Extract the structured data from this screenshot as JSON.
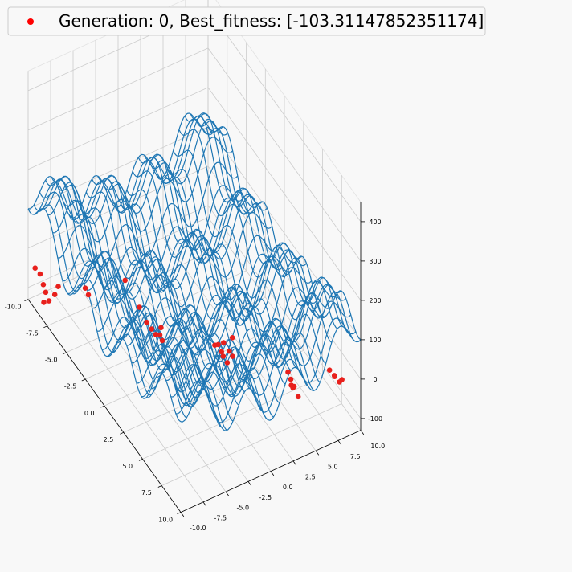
{
  "legend": {
    "label": "Generation: 0, Best_fitness: [-103.31147852351174]",
    "marker_color": "#ff0000"
  },
  "chart_data": {
    "type": "surface-wireframe-3d",
    "title": "",
    "xlabel": "",
    "ylabel": "",
    "zlabel": "",
    "xlim": [
      -10,
      10
    ],
    "ylim": [
      -10,
      10
    ],
    "zlim": [
      -130,
      450
    ],
    "x_ticks": [
      "-10.0",
      "-7.5",
      "-5.0",
      "-2.5",
      "0.0",
      "2.5",
      "5.0",
      "7.5",
      "10.0"
    ],
    "y_ticks": [
      "-10.0",
      "-7.5",
      "-5.0",
      "-2.5",
      "0.0",
      "2.5",
      "5.0",
      "7.5",
      "10.0"
    ],
    "z_ticks": [
      "-100",
      "0",
      "100",
      "200",
      "300",
      "400"
    ],
    "surface_color": "#1f77b4",
    "point_color": "#e8201c",
    "grid": true,
    "legend_position": "upper-left",
    "series": [
      {
        "name": "Generation: 0, Best_fitness: [-103.31147852351174]",
        "type": "scatter3d",
        "points": [
          [
            -8.9,
            -9.6,
            -40
          ],
          [
            -9.2,
            -9.9,
            -30
          ],
          [
            -8.6,
            -9.5,
            -60
          ],
          [
            -8.4,
            -9.4,
            -75
          ],
          [
            -8.1,
            -9.3,
            -90
          ],
          [
            -8.3,
            -9.7,
            -95
          ],
          [
            -7.8,
            -8.9,
            -70
          ],
          [
            -7.7,
            -8.6,
            -50
          ],
          [
            -7.0,
            -6.2,
            -60
          ],
          [
            -6.7,
            -6.1,
            -70
          ],
          [
            -3.2,
            -3.4,
            -35
          ],
          [
            -2.6,
            -3.1,
            -60
          ],
          [
            -2.3,
            -2.8,
            -72
          ],
          [
            -2.0,
            -2.6,
            -80
          ],
          [
            -1.7,
            -2.4,
            -75
          ],
          [
            -1.9,
            -2.1,
            -65
          ],
          [
            -1.5,
            -2.3,
            -85
          ],
          [
            -3.9,
            -4.4,
            25
          ],
          [
            1.7,
            1.2,
            -45
          ],
          [
            1.9,
            1.4,
            -60
          ],
          [
            2.0,
            1.5,
            -70
          ],
          [
            2.3,
            1.7,
            -80
          ],
          [
            1.5,
            1.0,
            -50
          ],
          [
            3.5,
            0.9,
            -10
          ],
          [
            3.7,
            1.1,
            -20
          ],
          [
            3.2,
            1.5,
            10
          ],
          [
            3.0,
            0.7,
            0
          ],
          [
            6.5,
            5.2,
            -45
          ],
          [
            6.7,
            5.4,
            -60
          ],
          [
            7.0,
            5.6,
            -80
          ],
          [
            6.8,
            5.0,
            -50
          ],
          [
            6.9,
            5.1,
            -55
          ],
          [
            6.6,
            4.8,
            -20
          ],
          [
            7.8,
            8.4,
            -20
          ],
          [
            8.0,
            8.8,
            -35
          ],
          [
            8.4,
            9.0,
            -40
          ],
          [
            8.6,
            9.1,
            -30
          ],
          [
            8.2,
            8.6,
            -25
          ]
        ]
      },
      {
        "name": "surface",
        "type": "wireframe",
        "grid": [
          -10,
          10,
          32
        ],
        "function": "x^2 + y^2 - 10*(cos(2*pi*x/5) + cos(2*pi*y/5))*5"
      }
    ]
  }
}
